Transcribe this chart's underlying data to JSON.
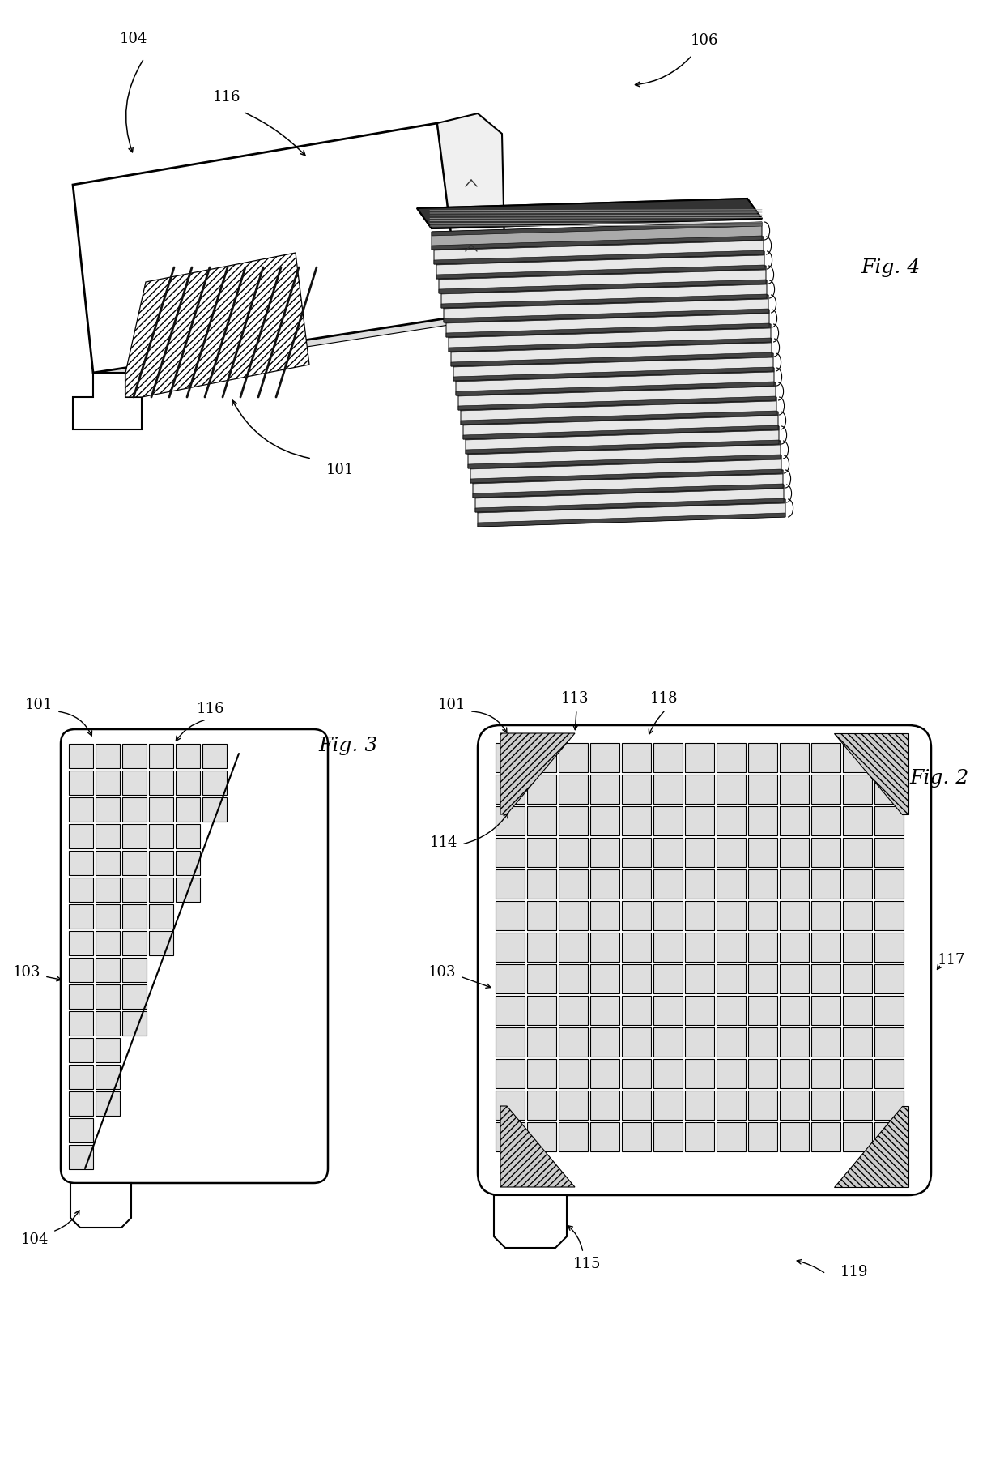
{
  "background_color": "#ffffff",
  "fig_width": 12.4,
  "fig_height": 18.29,
  "lc": "#000000",
  "lw": 1.5,
  "fig4_label": "Fig. 4",
  "fig3_label": "Fig. 3",
  "fig2_label": "Fig. 2",
  "label_fontsize": 13,
  "figlabel_fontsize": 18,
  "annotation_lw": 1.0
}
